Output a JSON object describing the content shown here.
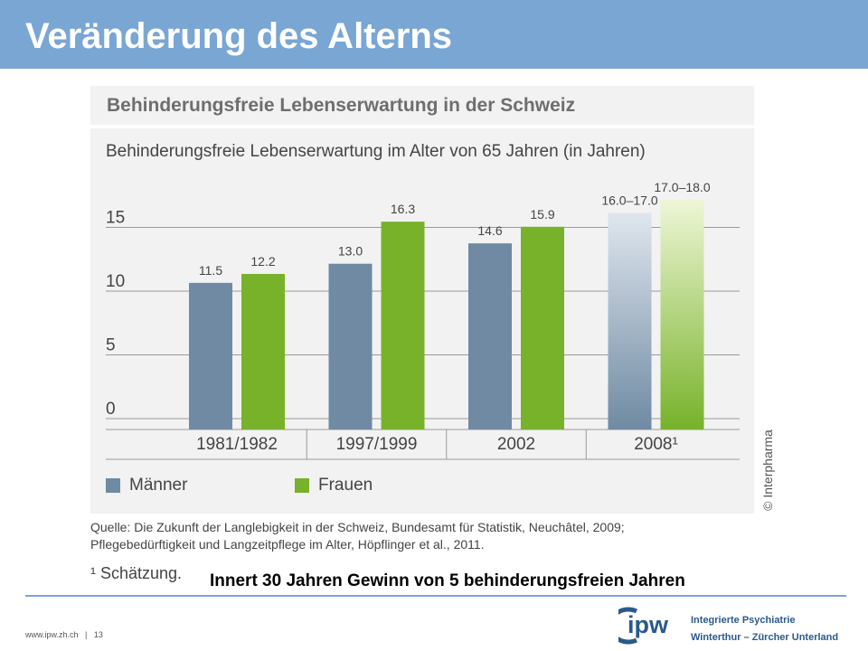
{
  "header": {
    "title": "Veränderung des Alterns"
  },
  "panel": {
    "title": "Behinderungsfreie Lebenserwartung in der Schweiz"
  },
  "chart_data": {
    "type": "bar",
    "title": "Behinderungsfreie Lebenserwartung im Alter von 65 Jahren (in Jahren)",
    "categories": [
      "1981/1982",
      "1997/1999",
      "2002",
      "2008¹"
    ],
    "series": [
      {
        "name": "Männer",
        "values": [
          11.5,
          13.0,
          14.6,
          17.0
        ],
        "labels": [
          "11.5",
          "13.0",
          "14.6",
          "16.0–17.0"
        ],
        "color": "#6f8aa2"
      },
      {
        "name": "Frauen",
        "values": [
          12.2,
          16.3,
          15.9,
          18.0
        ],
        "labels": [
          "12.2",
          "16.3",
          "15.9",
          "17.0–18.0"
        ],
        "color": "#77b22a"
      }
    ],
    "estimated_category_index": 3,
    "yticks": [
      0,
      5,
      10,
      15
    ],
    "ylim": [
      0,
      18
    ],
    "grid": true,
    "legend_position": "bottom-left"
  },
  "copyright": "© Interpharma",
  "source": {
    "line1": "Quelle: Die Zukunft der Langlebigkeit in der Schweiz, Bundesamt für Statistik, Neuchâtel, 2009;",
    "line2": "Pflegebedürftigkeit und Langzeitpflege im Alter, Höpflinger et al., 2011."
  },
  "footnote": "¹ Schätzung.",
  "takeaway": "Innert 30 Jahren Gewinn von 5 behinderungsfreien Jahren",
  "footer": {
    "website": "www.ipw.zh.ch",
    "separator": "|",
    "page_number": "13"
  },
  "logo": {
    "abbr": "ipw",
    "line1": "Integrierte Psychiatrie",
    "line2": "Winterthur – Zürcher Unterland",
    "color": "#2a5a8c"
  }
}
